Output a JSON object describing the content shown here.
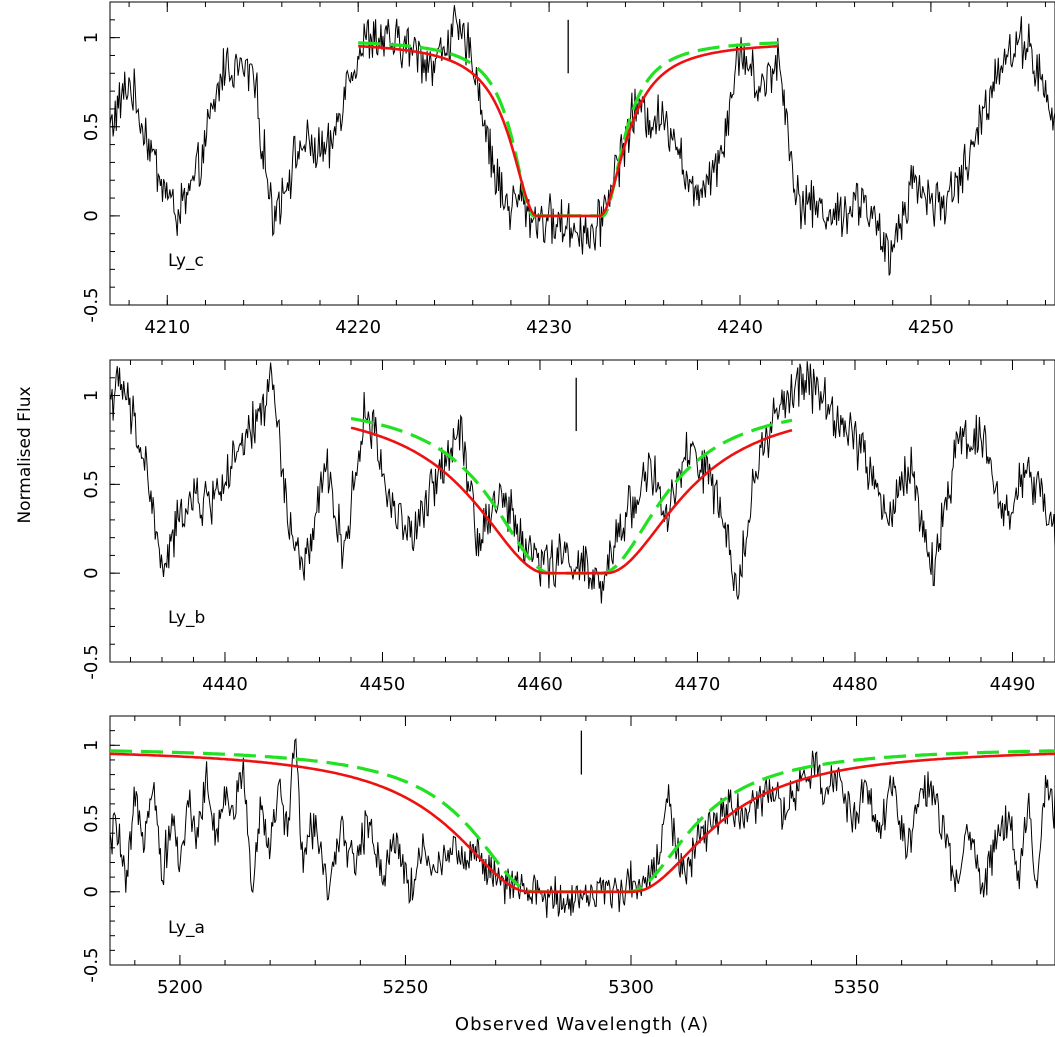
{
  "figure": {
    "ylabel": "Normalised Flux",
    "xlabel": "Observed Wavelength (A)"
  },
  "chart_data": [
    {
      "type": "line",
      "panel_label": "Ly_c",
      "xlim": [
        4207,
        4256.5
      ],
      "ylim": [
        -0.5,
        1.2
      ],
      "xticks": [
        4210,
        4220,
        4230,
        4240,
        4250
      ],
      "yticks": [
        -0.5,
        0,
        0.5,
        1
      ],
      "ytick_labels": [
        "-0.5",
        "0",
        "0.5",
        "1"
      ],
      "marker_x": 4231,
      "fit_range": [
        4220,
        4242
      ],
      "fit_red": {
        "center": 4231,
        "halfwidth": 1.65,
        "scale": 1.6,
        "power": 2,
        "ymax": 0.98
      },
      "fit_green": {
        "center": 4231,
        "halfwidth": 1.8,
        "scale": 1.3,
        "power": 2,
        "ymax": 0.99
      },
      "spectrum_nodes": [
        [
          4207,
          0.5
        ],
        [
          4208,
          0.75
        ],
        [
          4209.5,
          0.25
        ],
        [
          4210.5,
          0.0
        ],
        [
          4211.5,
          0.2
        ],
        [
          4213,
          0.85
        ],
        [
          4214.5,
          0.8
        ],
        [
          4215.5,
          0.0
        ],
        [
          4217,
          0.4
        ],
        [
          4218.5,
          0.35
        ],
        [
          4219.5,
          0.8
        ],
        [
          4220.5,
          1.0
        ],
        [
          4222.5,
          0.95
        ],
        [
          4224,
          0.85
        ],
        [
          4225,
          1.05
        ],
        [
          4226,
          0.9
        ],
        [
          4227,
          0.3
        ],
        [
          4227.8,
          0.05
        ],
        [
          4228.5,
          0.1
        ],
        [
          4229,
          0.0
        ],
        [
          4232.5,
          -0.1
        ],
        [
          4233,
          0.1
        ],
        [
          4234.5,
          0.6
        ],
        [
          4236.5,
          0.5
        ],
        [
          4237.5,
          0.1
        ],
        [
          4239,
          0.35
        ],
        [
          4240,
          0.95
        ],
        [
          4241,
          0.7
        ],
        [
          4242,
          0.9
        ],
        [
          4243,
          0.1
        ],
        [
          4245,
          0.0
        ],
        [
          4246.5,
          0.1
        ],
        [
          4247.8,
          -0.25
        ],
        [
          4249,
          0.2
        ],
        [
          4250.5,
          0.05
        ],
        [
          4252,
          0.3
        ],
        [
          4253.5,
          0.85
        ],
        [
          4255,
          1.0
        ],
        [
          4256.5,
          0.5
        ]
      ]
    },
    {
      "type": "line",
      "panel_label": "Ly_b",
      "xlim": [
        4432.7,
        4492.7
      ],
      "ylim": [
        -0.5,
        1.2
      ],
      "xticks": [
        4440,
        4450,
        4460,
        4470,
        4480,
        4490
      ],
      "yticks": [
        -0.5,
        0,
        0.5,
        1
      ],
      "ytick_labels": [
        "-0.5",
        "0",
        "0.5",
        "1"
      ],
      "marker_x": 4462.3,
      "fit_range": [
        4448,
        4476
      ],
      "fit_red": {
        "center": 4462.3,
        "halfwidth": 1.9,
        "scale": 5.5,
        "power": 2,
        "ymax": 0.98
      },
      "fit_green": {
        "center": 4462.3,
        "halfwidth": 1.6,
        "scale": 4.5,
        "power": 2,
        "ymax": 0.98
      },
      "spectrum_nodes": [
        [
          4432.7,
          1.0
        ],
        [
          4433.5,
          1.05
        ],
        [
          4435,
          0.6
        ],
        [
          4436,
          0.0
        ],
        [
          4437.5,
          0.4
        ],
        [
          4439,
          0.4
        ],
        [
          4440.5,
          0.6
        ],
        [
          4442,
          0.85
        ],
        [
          4443,
          1.1
        ],
        [
          4444,
          0.3
        ],
        [
          4445,
          0.0
        ],
        [
          4446.5,
          0.6
        ],
        [
          4447.5,
          0.1
        ],
        [
          4449,
          0.95
        ],
        [
          4450.5,
          0.4
        ],
        [
          4452,
          0.2
        ],
        [
          4453.5,
          0.55
        ],
        [
          4455,
          0.85
        ],
        [
          4456,
          0.2
        ],
        [
          4457.5,
          0.45
        ],
        [
          4459,
          0.15
        ],
        [
          4460.5,
          0.05
        ],
        [
          4462,
          0.1
        ],
        [
          4464,
          -0.1
        ],
        [
          4465,
          0.25
        ],
        [
          4467,
          0.6
        ],
        [
          4468,
          0.3
        ],
        [
          4469.5,
          0.7
        ],
        [
          4471,
          0.5
        ],
        [
          4472.5,
          -0.1
        ],
        [
          4473.5,
          0.5
        ],
        [
          4475,
          0.9
        ],
        [
          4477,
          1.1
        ],
        [
          4479,
          0.85
        ],
        [
          4480.5,
          0.7
        ],
        [
          4482,
          0.3
        ],
        [
          4483.5,
          0.6
        ],
        [
          4485,
          0.0
        ],
        [
          4486.5,
          0.75
        ],
        [
          4488,
          0.8
        ],
        [
          4489.5,
          0.3
        ],
        [
          4491,
          0.6
        ],
        [
          4492.7,
          0.2
        ]
      ]
    },
    {
      "type": "line",
      "panel_label": "Ly_a",
      "xlim": [
        5184.5,
        5394
      ],
      "ylim": [
        -0.5,
        1.2
      ],
      "xticks": [
        5200,
        5250,
        5300,
        5350
      ],
      "yticks": [
        -0.5,
        0,
        0.5,
        1
      ],
      "ytick_labels": [
        "-0.5",
        "0",
        "0.5",
        "1"
      ],
      "marker_x": 5289,
      "fit_range": [
        5184.5,
        5394
      ],
      "fit_red": {
        "center": 5289,
        "halfwidth": 11.5,
        "scale": 20,
        "power": 2,
        "ymax": 0.985
      },
      "fit_green": {
        "center": 5289,
        "halfwidth": 10.5,
        "scale": 16,
        "power": 2,
        "ymax": 0.99
      },
      "spectrum_nodes": [
        [
          5184.5,
          0.3
        ],
        [
          5186,
          0.5
        ],
        [
          5188,
          0.0
        ],
        [
          5190,
          0.6
        ],
        [
          5192,
          0.4
        ],
        [
          5194,
          0.8
        ],
        [
          5196,
          0.1
        ],
        [
          5198,
          0.5
        ],
        [
          5200,
          0.2
        ],
        [
          5202,
          0.6
        ],
        [
          5204,
          0.4
        ],
        [
          5206,
          0.8
        ],
        [
          5208,
          0.3
        ],
        [
          5210,
          0.7
        ],
        [
          5212,
          0.5
        ],
        [
          5214,
          0.9
        ],
        [
          5216,
          0.0
        ],
        [
          5218,
          0.6
        ],
        [
          5220,
          0.3
        ],
        [
          5222,
          0.7
        ],
        [
          5224,
          0.4
        ],
        [
          5225.5,
          1.15
        ],
        [
          5227,
          0.2
        ],
        [
          5230,
          0.5
        ],
        [
          5233,
          0.0
        ],
        [
          5236,
          0.4
        ],
        [
          5239,
          0.2
        ],
        [
          5242,
          0.5
        ],
        [
          5245,
          0.1
        ],
        [
          5248,
          0.4
        ],
        [
          5251,
          0.0
        ],
        [
          5254,
          0.3
        ],
        [
          5257,
          0.1
        ],
        [
          5260,
          0.35
        ],
        [
          5263,
          0.2
        ],
        [
          5266,
          0.3
        ],
        [
          5269,
          0.1
        ],
        [
          5272,
          0.05
        ],
        [
          5276,
          0.0
        ],
        [
          5285,
          -0.05
        ],
        [
          5295,
          0.0
        ],
        [
          5300,
          0.05
        ],
        [
          5304,
          0.1
        ],
        [
          5306,
          0.2
        ],
        [
          5308,
          0.7
        ],
        [
          5310,
          0.3
        ],
        [
          5312,
          0.1
        ],
        [
          5315,
          0.35
        ],
        [
          5318,
          0.45
        ],
        [
          5322,
          0.6
        ],
        [
          5326,
          0.5
        ],
        [
          5330,
          0.7
        ],
        [
          5334,
          0.55
        ],
        [
          5338,
          0.75
        ],
        [
          5341,
          0.85
        ],
        [
          5343,
          0.65
        ],
        [
          5346,
          0.8
        ],
        [
          5349,
          0.5
        ],
        [
          5352,
          0.75
        ],
        [
          5355,
          0.4
        ],
        [
          5358,
          0.75
        ],
        [
          5361,
          0.3
        ],
        [
          5364,
          0.65
        ],
        [
          5367,
          0.7
        ],
        [
          5370,
          0.3
        ],
        [
          5372,
          0.0
        ],
        [
          5375,
          0.45
        ],
        [
          5378,
          0.0
        ],
        [
          5381,
          0.4
        ],
        [
          5384,
          0.5
        ],
        [
          5386,
          0.1
        ],
        [
          5388,
          0.6
        ],
        [
          5390,
          0.05
        ],
        [
          5392,
          0.7
        ],
        [
          5394,
          0.55
        ]
      ]
    }
  ]
}
